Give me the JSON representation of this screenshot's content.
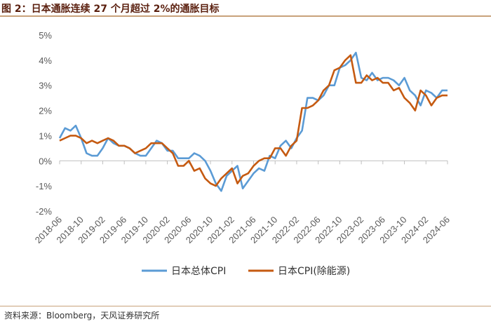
{
  "title": "图 2：日本通胀连续 27 个月超过 2%的通胀目标",
  "source": "资料来源：Bloomberg，天风证券研究所",
  "colors": {
    "series1": "#5b9bd5",
    "series2": "#c55a11",
    "axis": "#bfbfbf"
  },
  "chart_data": {
    "type": "line",
    "ylim": [
      -2,
      5
    ],
    "yticks": [
      -2,
      -1,
      0,
      1,
      2,
      3,
      4,
      5
    ],
    "ytick_labels": [
      "-2%",
      "-1%",
      "0%",
      "1%",
      "2%",
      "3%",
      "4%",
      "5%"
    ],
    "xtick_labels": [
      "2018-06",
      "2018-10",
      "2019-02",
      "2019-06",
      "2019-10",
      "2020-02",
      "2020-06",
      "2020-10",
      "2021-02",
      "2021-06",
      "2021-10",
      "2022-02",
      "2022-06",
      "2022-10",
      "2023-02",
      "2023-06",
      "2023-10",
      "2024-02",
      "2024-06"
    ],
    "x": [
      "2018-06",
      "2018-07",
      "2018-08",
      "2018-09",
      "2018-10",
      "2018-11",
      "2018-12",
      "2019-01",
      "2019-02",
      "2019-03",
      "2019-04",
      "2019-05",
      "2019-06",
      "2019-07",
      "2019-08",
      "2019-09",
      "2019-10",
      "2019-11",
      "2019-12",
      "2020-01",
      "2020-02",
      "2020-03",
      "2020-04",
      "2020-05",
      "2020-06",
      "2020-07",
      "2020-08",
      "2020-09",
      "2020-10",
      "2020-11",
      "2020-12",
      "2021-01",
      "2021-02",
      "2021-03",
      "2021-04",
      "2021-05",
      "2021-06",
      "2021-07",
      "2021-08",
      "2021-09",
      "2021-10",
      "2021-11",
      "2021-12",
      "2022-01",
      "2022-02",
      "2022-03",
      "2022-04",
      "2022-05",
      "2022-06",
      "2022-07",
      "2022-08",
      "2022-09",
      "2022-10",
      "2022-11",
      "2022-12",
      "2023-01",
      "2023-02",
      "2023-03",
      "2023-04",
      "2023-05",
      "2023-06",
      "2023-07",
      "2023-08",
      "2023-09",
      "2023-10",
      "2023-11",
      "2023-12",
      "2024-01",
      "2024-02",
      "2024-03",
      "2024-04",
      "2024-05",
      "2024-06"
    ],
    "series": [
      {
        "name": "日本总体CPI",
        "values": [
          0.9,
          1.3,
          1.2,
          1.4,
          0.9,
          0.3,
          0.2,
          0.2,
          0.5,
          0.9,
          0.7,
          0.6,
          0.6,
          0.5,
          0.3,
          0.2,
          0.2,
          0.5,
          0.8,
          0.7,
          0.4,
          0.4,
          0.1,
          0.1,
          0.1,
          0.3,
          0.2,
          0.0,
          -0.4,
          -0.9,
          -1.2,
          -0.6,
          -0.4,
          -0.2,
          -1.1,
          -0.8,
          -0.5,
          -0.3,
          -0.4,
          0.2,
          0.1,
          0.6,
          0.8,
          0.5,
          0.9,
          1.2,
          2.5,
          2.5,
          2.4,
          2.6,
          3.0,
          3.0,
          3.7,
          3.8,
          4.0,
          4.3,
          3.3,
          3.2,
          3.5,
          3.2,
          3.3,
          3.3,
          3.2,
          3.0,
          3.3,
          2.8,
          2.6,
          2.2,
          2.8,
          2.7,
          2.5,
          2.8,
          2.8
        ]
      },
      {
        "name": "日本CPI(除能源)",
        "values": [
          0.8,
          0.9,
          1.0,
          1.0,
          0.9,
          0.7,
          0.8,
          0.7,
          0.8,
          0.9,
          0.8,
          0.6,
          0.6,
          0.5,
          0.3,
          0.4,
          0.5,
          0.7,
          0.7,
          0.7,
          0.5,
          0.3,
          -0.2,
          -0.2,
          0.0,
          -0.4,
          -0.3,
          -0.7,
          -0.9,
          -1.0,
          -0.7,
          -0.5,
          -0.3,
          -0.9,
          -0.6,
          -0.5,
          -0.2,
          0.0,
          0.1,
          0.1,
          0.5,
          0.5,
          0.2,
          0.6,
          0.8,
          2.1,
          2.1,
          2.2,
          2.4,
          2.8,
          3.0,
          3.6,
          3.7,
          4.0,
          4.2,
          3.1,
          3.1,
          3.4,
          3.2,
          3.3,
          3.1,
          3.1,
          2.8,
          2.9,
          2.5,
          2.3,
          2.0,
          2.8,
          2.6,
          2.2,
          2.5,
          2.6,
          2.6
        ]
      }
    ]
  }
}
